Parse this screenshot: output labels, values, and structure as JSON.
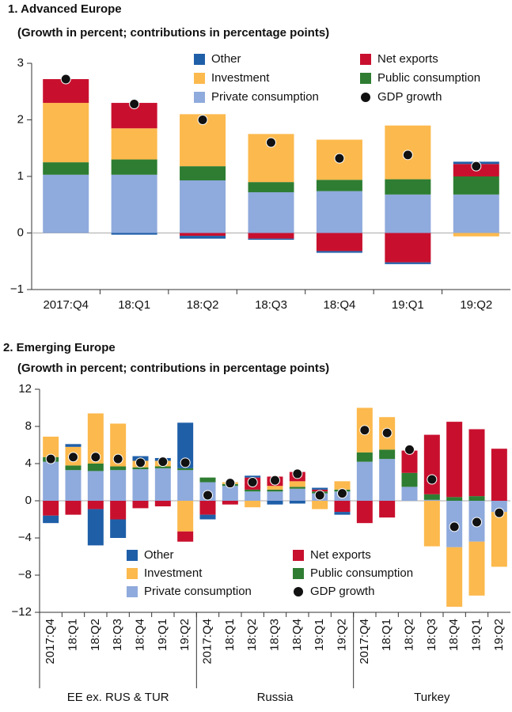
{
  "chart_data": [
    {
      "type": "stacked_bar",
      "title": "1. Advanced Europe",
      "subtitle": "(Growth in percent; contributions in percentage points)",
      "categories": [
        "2017:Q4",
        "18:Q1",
        "18:Q2",
        "18:Q3",
        "18:Q4",
        "19:Q1",
        "19:Q2"
      ],
      "ylim": [
        -1,
        3
      ],
      "yticks": [
        {
          "value": -1,
          "label": "−1"
        },
        0,
        1,
        2,
        3
      ],
      "series": [
        {
          "name": "Private consumption",
          "color": "#8faadc",
          "values": [
            1.03,
            1.03,
            0.93,
            0.72,
            0.74,
            0.68,
            0.68
          ]
        },
        {
          "name": "Public consumption",
          "color": "#2e7d32",
          "values": [
            0.22,
            0.27,
            0.25,
            0.18,
            0.2,
            0.27,
            0.32
          ]
        },
        {
          "name": "Investment",
          "color": "#fcb94d",
          "values": [
            1.05,
            0.55,
            0.92,
            0.85,
            0.71,
            0.95,
            -0.06
          ]
        },
        {
          "name": "Net exports",
          "color": "#c8102e",
          "values": [
            0.42,
            0.45,
            -0.05,
            -0.1,
            -0.32,
            -0.52,
            0.22
          ]
        },
        {
          "name": "Other",
          "color": "#1f5fa8",
          "values": [
            0,
            -0.03,
            -0.05,
            -0.02,
            -0.03,
            -0.03,
            0.04
          ]
        }
      ],
      "gdp": {
        "name": "GDP growth",
        "color": "#111111",
        "values": [
          2.72,
          2.28,
          2.0,
          1.6,
          1.32,
          1.38,
          1.18
        ]
      }
    },
    {
      "type": "stacked_bar",
      "title": "2. Emerging Europe",
      "subtitle": "(Growth in percent; contributions in percentage points)",
      "categories": [
        "2017:Q4",
        "18:Q1",
        "18:Q2",
        "18:Q3",
        "18:Q4",
        "19:Q1",
        "19:Q2",
        "2017:Q4",
        "18:Q1",
        "18:Q2",
        "18:Q3",
        "18:Q4",
        "19:Q1",
        "19:Q2",
        "2017:Q4",
        "18:Q1",
        "18:Q2",
        "18:Q3",
        "18:Q4",
        "19:Q1",
        "19:Q2"
      ],
      "groups": [
        "EE ex. RUS & TUR",
        "Russia",
        "Turkey"
      ],
      "ylim": [
        -12,
        12
      ],
      "yticks": [
        {
          "value": -12,
          "label": "−12"
        },
        {
          "value": -8,
          "label": "−8"
        },
        {
          "value": -4,
          "label": "−4"
        },
        0,
        4,
        8,
        12
      ],
      "series": [
        {
          "name": "Private consumption",
          "color": "#8faadc",
          "values": [
            4.2,
            3.3,
            3.2,
            3.3,
            3.4,
            3.5,
            3.3,
            2.0,
            1.6,
            1.0,
            1.0,
            1.3,
            0.8,
            1.0,
            4.2,
            4.5,
            1.5,
            0.1,
            -5.0,
            -4.4,
            -1.2
          ]
        },
        {
          "name": "Public consumption",
          "color": "#2e7d32",
          "values": [
            0.5,
            0.5,
            0.8,
            0.4,
            0.2,
            0.2,
            0.2,
            0.5,
            0.2,
            0.2,
            0.2,
            0.2,
            0.2,
            0.2,
            1.0,
            1.0,
            1.5,
            0.6,
            0.4,
            0.5,
            0
          ]
        },
        {
          "name": "Investment",
          "color": "#fcb94d",
          "values": [
            2.2,
            2.0,
            5.4,
            4.6,
            0.7,
            0.6,
            -3.3,
            0,
            0.2,
            -0.7,
            0.4,
            0.6,
            -0.9,
            0.9,
            4.8,
            3.5,
            0,
            -4.9,
            -6.4,
            -5.8,
            -5.9
          ]
        },
        {
          "name": "Net exports",
          "color": "#c8102e",
          "values": [
            -1.6,
            -1.5,
            -0.9,
            -2.0,
            -0.8,
            -0.6,
            -1.1,
            -1.5,
            -0.4,
            1.3,
            1.0,
            1.0,
            0.2,
            -1.2,
            -2.4,
            -1.8,
            2.4,
            6.4,
            8.1,
            7.2,
            5.6
          ]
        },
        {
          "name": "Other",
          "color": "#1f5fa8",
          "values": [
            -0.8,
            0.3,
            -3.9,
            -2.0,
            0.5,
            0.3,
            4.9,
            -0.5,
            0,
            0.2,
            -0.4,
            -0.3,
            0.2,
            -0.3,
            0,
            0,
            0,
            0,
            0,
            0,
            0
          ]
        }
      ],
      "gdp": {
        "name": "GDP growth",
        "color": "#111111",
        "values": [
          4.5,
          4.7,
          4.7,
          4.5,
          4.1,
          4.2,
          4.1,
          0.6,
          1.9,
          2.0,
          2.2,
          2.9,
          0.6,
          0.8,
          7.6,
          7.3,
          5.5,
          2.3,
          -2.8,
          -2.3,
          -1.3
        ]
      }
    }
  ]
}
